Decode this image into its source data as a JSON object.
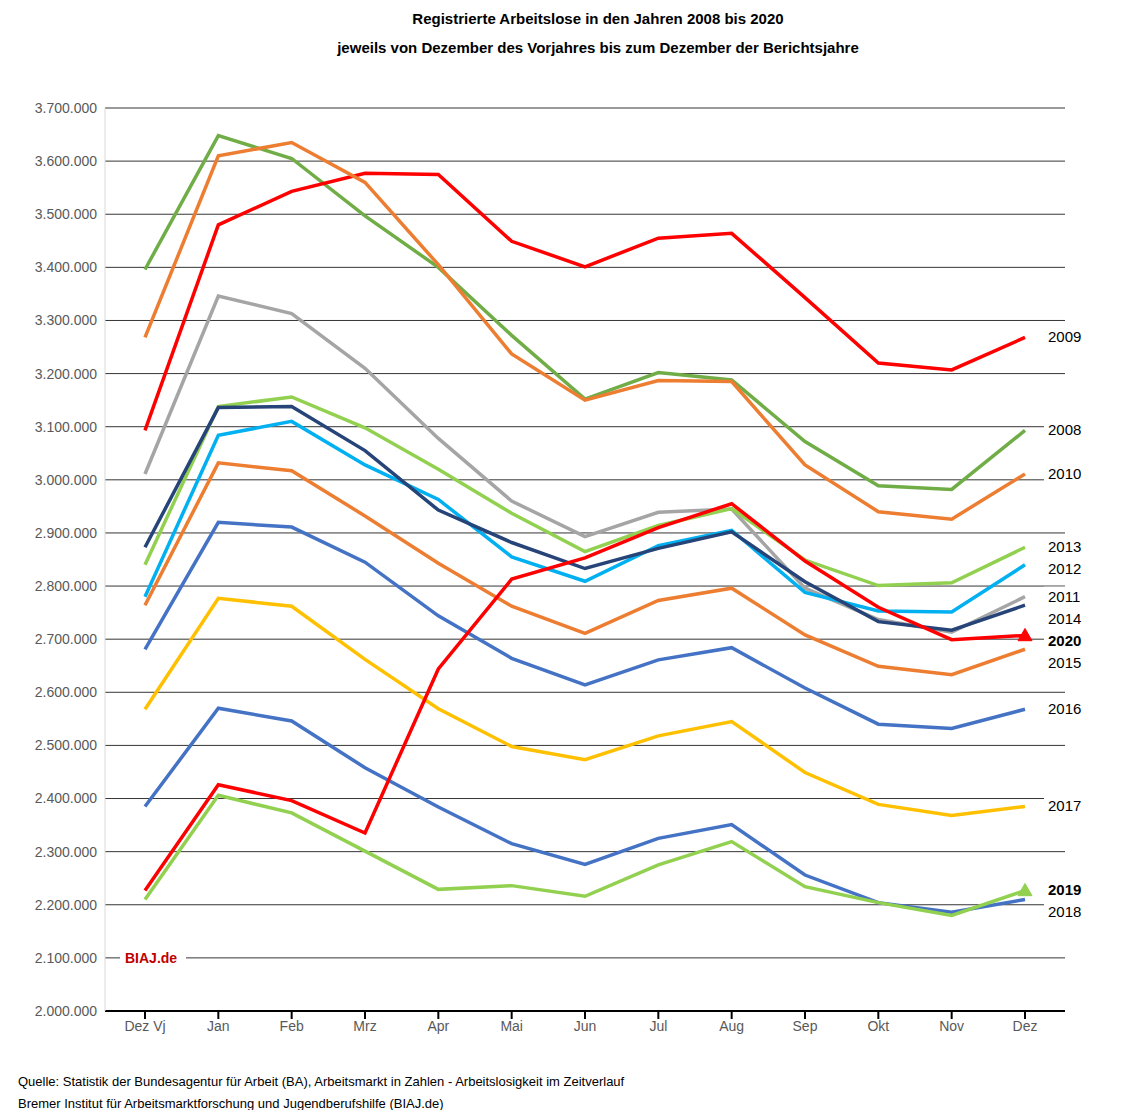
{
  "chart_data": {
    "type": "line",
    "title": "Registrierte Arbeitslose in den Jahren 2008 bis 2020",
    "subtitle": "jeweils von Dezember des Vorjahres bis zum Dezember der Berichtsjahre",
    "categories": [
      "Dez Vj",
      "Jan",
      "Feb",
      "Mrz",
      "Apr",
      "Mai",
      "Jun",
      "Jul",
      "Aug",
      "Sep",
      "Okt",
      "Nov",
      "Dez"
    ],
    "ylim": [
      2000000,
      3700000
    ],
    "yticks": [
      {
        "value": 2000000,
        "label": "2.000.000"
      },
      {
        "value": 2100000,
        "label": "2.100.000"
      },
      {
        "value": 2200000,
        "label": "2.200.000"
      },
      {
        "value": 2300000,
        "label": "2.300.000"
      },
      {
        "value": 2400000,
        "label": "2.400.000"
      },
      {
        "value": 2500000,
        "label": "2.500.000"
      },
      {
        "value": 2600000,
        "label": "2.600.000"
      },
      {
        "value": 2700000,
        "label": "2.700.000"
      },
      {
        "value": 2800000,
        "label": "2.800.000"
      },
      {
        "value": 2900000,
        "label": "2.900.000"
      },
      {
        "value": 3000000,
        "label": "3.000.000"
      },
      {
        "value": 3100000,
        "label": "3.100.000"
      },
      {
        "value": 3200000,
        "label": "3.200.000"
      },
      {
        "value": 3300000,
        "label": "3.300.000"
      },
      {
        "value": 3400000,
        "label": "3.400.000"
      },
      {
        "value": 3500000,
        "label": "3.500.000"
      },
      {
        "value": 3600000,
        "label": "3.600.000"
      },
      {
        "value": 3700000,
        "label": "3.700.000"
      }
    ],
    "grid": true,
    "series": [
      {
        "name": "2008",
        "color": "#70ad47",
        "values": [
          3396000,
          3648000,
          3605000,
          3497000,
          3400000,
          3272000,
          3152000,
          3202000,
          3188000,
          3072000,
          2989000,
          2982000,
          3093000
        ]
      },
      {
        "name": "2009",
        "color": "#ff0000",
        "values": [
          3093000,
          3480000,
          3543000,
          3577000,
          3575000,
          3449000,
          3401000,
          3455000,
          3464000,
          3343000,
          3220000,
          3207000,
          3268000
        ]
      },
      {
        "name": "2010",
        "color": "#ed7d31",
        "values": [
          3268000,
          3610000,
          3635000,
          3560000,
          3405000,
          3237000,
          3150000,
          3187000,
          3185000,
          3028000,
          2940000,
          2926000,
          3011000
        ]
      },
      {
        "name": "2011",
        "color": "#a5a5a5",
        "values": [
          3011000,
          3346000,
          3313000,
          3210000,
          3078000,
          2960000,
          2893000,
          2939000,
          2945000,
          2796000,
          2737000,
          2713000,
          2780000
        ]
      },
      {
        "name": "2012",
        "color": "#00b0f0",
        "values": [
          2780000,
          3084000,
          3110000,
          3028000,
          2963000,
          2855000,
          2809000,
          2876000,
          2905000,
          2788000,
          2753000,
          2751000,
          2840000
        ]
      },
      {
        "name": "2013",
        "color": "#92d050",
        "values": [
          2840000,
          3138000,
          3156000,
          3098000,
          3020000,
          2937000,
          2865000,
          2914000,
          2946000,
          2849000,
          2801000,
          2806000,
          2873000
        ]
      },
      {
        "name": "2014",
        "color": "#264478",
        "values": [
          2873000,
          3136000,
          3138000,
          3055000,
          2943000,
          2882000,
          2833000,
          2871000,
          2902000,
          2808000,
          2733000,
          2717000,
          2764000
        ]
      },
      {
        "name": "2015",
        "color": "#ed7d31",
        "values": [
          2764000,
          3032000,
          3017000,
          2932000,
          2843000,
          2762000,
          2711000,
          2773000,
          2796000,
          2708000,
          2649000,
          2633000,
          2681000
        ]
      },
      {
        "name": "2016",
        "color": "#4472c4",
        "values": [
          2681000,
          2920000,
          2911000,
          2845000,
          2744000,
          2664000,
          2614000,
          2661000,
          2684000,
          2608000,
          2540000,
          2532000,
          2568000
        ]
      },
      {
        "name": "2017",
        "color": "#ffc000",
        "values": [
          2568000,
          2777000,
          2762000,
          2662000,
          2569000,
          2498000,
          2473000,
          2518000,
          2545000,
          2449000,
          2389000,
          2368000,
          2385000
        ]
      },
      {
        "name": "2018",
        "color": "#4472c4",
        "values": [
          2385000,
          2570000,
          2546000,
          2458000,
          2384000,
          2315000,
          2276000,
          2325000,
          2351000,
          2256000,
          2204000,
          2186000,
          2210000
        ]
      },
      {
        "name": "2019",
        "color": "#92d050",
        "marker": "triangle",
        "values": [
          2210000,
          2406000,
          2373000,
          2301000,
          2229000,
          2236000,
          2216000,
          2275000,
          2319000,
          2234000,
          2204000,
          2180000,
          2227000
        ]
      },
      {
        "name": "2020",
        "color": "#ff0000",
        "marker": "triangle",
        "values": [
          2227000,
          2426000,
          2396000,
          2335000,
          2644000,
          2813000,
          2853000,
          2910000,
          2955000,
          2847000,
          2760000,
          2699000,
          2707000
        ]
      }
    ],
    "annotation": {
      "text": "BIAJ.de",
      "y": 2100000
    },
    "source": [
      "Quelle: Statistik der Bundesagentur für Arbeit (BA), Arbeitsmarkt in Zahlen - Arbeitslosigkeit im Zeitverlauf",
      "Bremer Institut für Arbeitsmarktforschung und Jugendberufshilfe (BIAJ.de)"
    ]
  }
}
